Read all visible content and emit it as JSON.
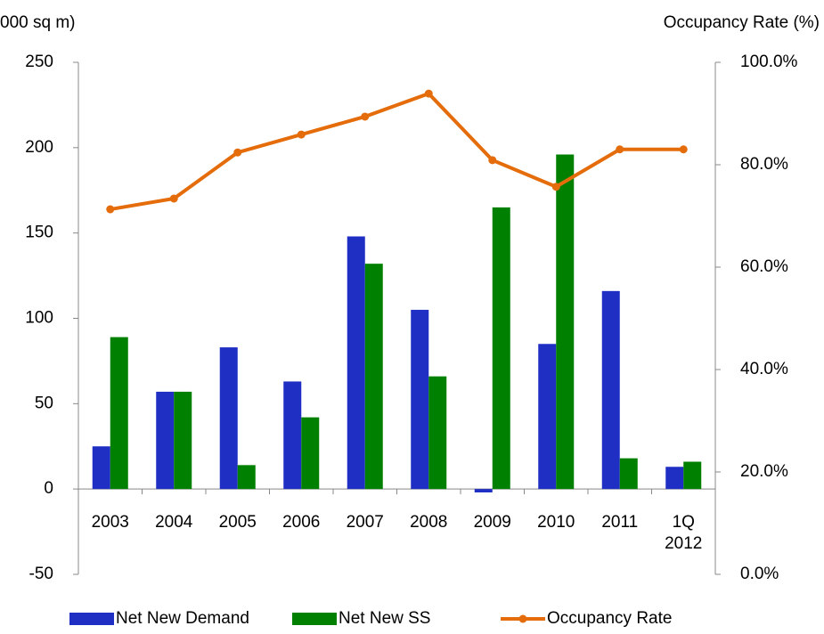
{
  "chart_data": {
    "type": "bar",
    "y_label": "000 sq m)",
    "y2_label": "Occupancy Rate (%)",
    "categories": [
      "2003",
      "2004",
      "2005",
      "2006",
      "2007",
      "2008",
      "2009",
      "2010",
      "2011",
      "1Q 2012"
    ],
    "series": [
      {
        "name": "Net New Demand",
        "color": "#1f2fc4",
        "type": "bar",
        "values": [
          25,
          57,
          83,
          63,
          148,
          105,
          -2,
          85,
          116,
          13
        ]
      },
      {
        "name": "Net New SS",
        "color": "#008000",
        "type": "bar",
        "values": [
          89,
          57,
          14,
          42,
          132,
          66,
          165,
          196,
          18,
          16
        ]
      },
      {
        "name": "Occupancy Rate",
        "color": "#e46c0a",
        "type": "line",
        "axis": "y2",
        "values": [
          71.3,
          73.4,
          82.4,
          85.9,
          89.4,
          93.9,
          80.9,
          75.7,
          83.0,
          83.0
        ]
      }
    ],
    "ylim": [
      -50,
      250
    ],
    "yticks": [
      -50,
      0,
      50,
      100,
      150,
      200,
      250
    ],
    "y2lim": [
      0,
      100
    ],
    "y2ticks": [
      {
        "value": 0,
        "label": "0.0%"
      },
      {
        "value": 20,
        "label": "20.0%"
      },
      {
        "value": 40,
        "label": "40.0%"
      },
      {
        "value": 60,
        "label": "60.0%"
      },
      {
        "value": 80,
        "label": "80.0%"
      },
      {
        "value": 100,
        "label": "100.0%"
      }
    ],
    "legend": "bottom"
  }
}
